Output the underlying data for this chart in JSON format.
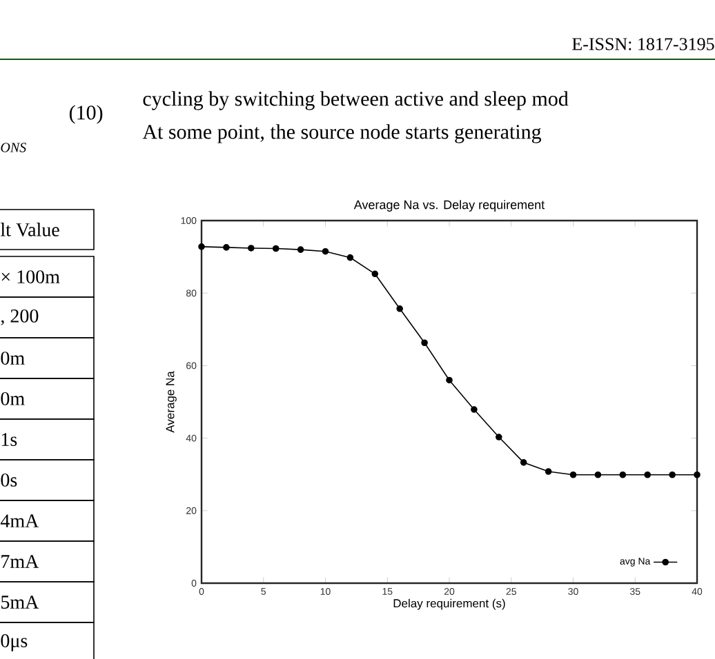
{
  "chart_data": {
    "type": "line",
    "title": "Average Na vs. Delay requirement",
    "xlabel": "Delay requirement (s)",
    "ylabel": "Average Na",
    "x": [
      0,
      2,
      4,
      6,
      8,
      10,
      12,
      14,
      16,
      18,
      20,
      22,
      24,
      26,
      28,
      30,
      32,
      34,
      36,
      38,
      40
    ],
    "series": [
      {
        "name": "avg Na",
        "color": "#000000",
        "values": [
          92.8,
          92.6,
          92.4,
          92.3,
          92.0,
          91.5,
          89.8,
          85.3,
          75.7,
          66.3,
          56.0,
          47.9,
          40.3,
          33.3,
          30.8,
          29.9,
          29.9,
          29.9,
          29.9,
          29.9,
          29.9
        ]
      }
    ],
    "xlim": [
      0,
      40
    ],
    "xticks": [
      0,
      5,
      10,
      15,
      20,
      25,
      30,
      35,
      40
    ],
    "ylim": [
      0,
      100
    ],
    "yticks": [
      0,
      20,
      40,
      60,
      80,
      100
    ],
    "marker": "circle",
    "line_style": "solid",
    "legend": "bottom right",
    "grid": false,
    "annotations": [
      "(10)",
      "ONS",
      "cycling by switching between active and sleep mod",
      "At some point, the source node starts generating",
      "E-ISSN: 1817-3195",
      "lt Value",
      "× 100m",
      ", 200",
      "0m",
      "0m",
      "1s",
      "0s",
      "4mA",
      "7mA",
      "5mA",
      "0μs"
    ]
  }
}
